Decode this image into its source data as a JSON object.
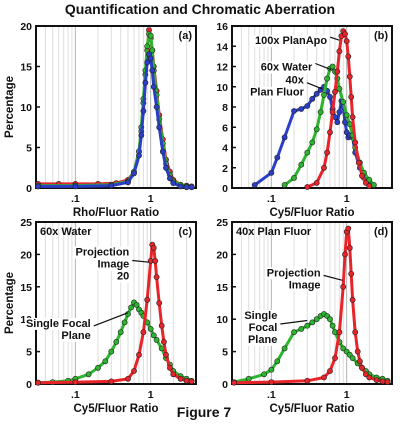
{
  "title": "Quantification and Chromatic Aberration",
  "caption": "Figure 7",
  "colors": {
    "red": "#e8242b",
    "green": "#2db52f",
    "blue": "#2b3ec8",
    "frame": "#111111"
  },
  "chart_data": [
    {
      "type": "line",
      "panel": "(a)",
      "xscale": "log",
      "xlim": [
        0.03,
        4
      ],
      "ylim": [
        0,
        20
      ],
      "xticks": [
        ".1",
        "1"
      ],
      "yticks": [
        "0",
        "5",
        "10",
        "15",
        "20"
      ],
      "xlabel": "Rho/Fluor Ratio",
      "ylabel": "Percentage",
      "annotations": [],
      "series": [
        {
          "color": "red",
          "x": [
            0.032,
            0.06,
            0.1,
            0.2,
            0.35,
            0.5,
            0.6,
            0.7,
            0.75,
            0.8,
            0.85,
            0.9,
            0.95,
            1.0,
            1.05,
            1.1,
            1.2,
            1.3,
            1.45,
            1.6,
            1.8,
            2.0,
            2.5,
            3.0,
            3.5
          ],
          "y": [
            0.5,
            0.5,
            0.5,
            0.5,
            0.6,
            1.0,
            2.0,
            4.5,
            7.0,
            10.5,
            14.0,
            17.0,
            19.5,
            18.5,
            17.0,
            15.0,
            12.0,
            9.0,
            6.0,
            3.5,
            2.0,
            1.0,
            0.4,
            0.3,
            0.2
          ]
        },
        {
          "color": "green",
          "x": [
            0.032,
            0.1,
            0.3,
            0.5,
            0.6,
            0.7,
            0.75,
            0.8,
            0.85,
            0.9,
            0.95,
            1.0,
            1.05,
            1.1,
            1.2,
            1.3,
            1.45,
            1.6,
            1.8,
            2.0,
            2.5,
            3.0,
            3.5
          ],
          "y": [
            0.3,
            0.3,
            0.4,
            0.8,
            2.0,
            4.5,
            7.5,
            11.0,
            14.5,
            17.5,
            19.0,
            18.8,
            17.0,
            14.5,
            11.5,
            8.5,
            5.5,
            3.0,
            1.6,
            0.8,
            0.4,
            0.2,
            0.1
          ]
        },
        {
          "color": "blue",
          "x": [
            0.032,
            0.1,
            0.3,
            0.5,
            0.6,
            0.7,
            0.75,
            0.8,
            0.85,
            0.9,
            0.95,
            1.0,
            1.05,
            1.1,
            1.2,
            1.3,
            1.45,
            1.6,
            1.8,
            2.0,
            2.5,
            3.0,
            3.5
          ],
          "y": [
            0.2,
            0.2,
            0.3,
            0.7,
            1.8,
            4.0,
            6.5,
            9.5,
            13.0,
            15.5,
            16.5,
            16.0,
            14.5,
            12.5,
            10.0,
            7.5,
            4.5,
            2.5,
            1.2,
            0.6,
            0.2,
            0.1,
            0.1
          ]
        }
      ]
    },
    {
      "type": "line",
      "panel": "(b)",
      "xscale": "log",
      "xlim": [
        0.03,
        4
      ],
      "ylim": [
        0,
        16
      ],
      "xticks": [
        ".1",
        "1"
      ],
      "yticks": [
        "0",
        "2",
        "4",
        "6",
        "8",
        "10",
        "12",
        "14",
        "16"
      ],
      "xlabel": "Cy5/Fluor Ratio",
      "ylabel": "",
      "annotations": [
        {
          "lines": [
            "100x PlanApo"
          ],
          "x": 0.55,
          "y": 14.6,
          "tx": 0.8,
          "ty": 14.6
        },
        {
          "lines": [
            "60x Water"
          ],
          "x": 0.35,
          "y": 12.0,
          "tx": 0.62,
          "ty": 11.7
        },
        {
          "lines": [
            "40x",
            "Plan Fluor"
          ],
          "x": 0.27,
          "y": 10.1,
          "tx": 0.47,
          "ty": 9.8
        }
      ],
      "series": [
        {
          "color": "blue",
          "x": [
            0.06,
            0.1,
            0.12,
            0.15,
            0.2,
            0.25,
            0.3,
            0.35,
            0.4,
            0.45,
            0.5,
            0.55,
            0.6,
            0.65,
            0.7,
            0.75,
            0.8,
            0.85,
            0.9,
            0.95,
            1.0,
            1.05,
            1.1,
            1.2,
            1.3,
            1.5,
            1.7,
            2.0
          ],
          "y": [
            0.3,
            1.5,
            3.0,
            5.0,
            7.6,
            7.8,
            8.1,
            8.8,
            9.3,
            9.7,
            10.0,
            9.6,
            9.0,
            7.8,
            7.0,
            6.5,
            7.5,
            8.6,
            8.0,
            6.5,
            5.5,
            5.0,
            5.2,
            5.0,
            3.5,
            2.0,
            1.0,
            0.3
          ]
        },
        {
          "color": "green",
          "x": [
            0.15,
            0.2,
            0.25,
            0.3,
            0.35,
            0.4,
            0.45,
            0.5,
            0.55,
            0.6,
            0.65,
            0.7,
            0.75,
            0.8,
            0.9,
            1.0,
            1.1,
            1.2,
            1.3,
            1.5,
            1.7,
            2.0,
            2.3
          ],
          "y": [
            0.3,
            1.0,
            2.3,
            3.5,
            4.5,
            5.8,
            7.5,
            9.2,
            10.8,
            11.8,
            12.0,
            11.5,
            10.8,
            9.8,
            8.5,
            7.2,
            6.3,
            5.2,
            4.0,
            2.5,
            1.5,
            0.8,
            0.3
          ]
        },
        {
          "color": "red",
          "x": [
            0.3,
            0.4,
            0.5,
            0.55,
            0.6,
            0.65,
            0.7,
            0.75,
            0.8,
            0.85,
            0.9,
            0.95,
            1.0,
            1.05,
            1.1,
            1.15,
            1.2,
            1.3,
            1.45,
            1.6,
            1.8,
            2.0
          ],
          "y": [
            0.1,
            0.5,
            2.0,
            3.5,
            5.5,
            7.5,
            9.5,
            11.5,
            13.5,
            15.0,
            15.5,
            15.2,
            14.5,
            13.0,
            11.0,
            9.0,
            7.0,
            4.5,
            2.5,
            1.2,
            0.5,
            0.2
          ]
        }
      ]
    },
    {
      "type": "line",
      "panel": "(c)",
      "tag": "60x Water",
      "xscale": "log",
      "xlim": [
        0.03,
        4
      ],
      "ylim": [
        0,
        25
      ],
      "xticks": [
        ".1",
        "1"
      ],
      "yticks": [
        "0",
        "5",
        "10",
        "15",
        "20",
        "25"
      ],
      "xlabel": "Cy5/Fluor Ratio",
      "ylabel": "Percentage",
      "annotations": [
        {
          "lines": [
            "Projection",
            "Image",
            "20"
          ],
          "x": 0.52,
          "y": 18.6,
          "tx": 0.95,
          "ty": 18.8
        },
        {
          "lines": [
            "Single Focal",
            "Plane"
          ],
          "x": 0.16,
          "y": 8.5,
          "tx": 0.5,
          "ty": 11.0
        }
      ],
      "series": [
        {
          "color": "green",
          "x": [
            0.032,
            0.05,
            0.08,
            0.1,
            0.15,
            0.2,
            0.25,
            0.3,
            0.35,
            0.4,
            0.45,
            0.5,
            0.55,
            0.6,
            0.65,
            0.7,
            0.75,
            0.8,
            0.9,
            1.0,
            1.1,
            1.2,
            1.4,
            1.6,
            1.8,
            2.0,
            2.5,
            3.0,
            3.5
          ],
          "y": [
            0.2,
            0.3,
            0.5,
            0.8,
            1.5,
            2.5,
            3.5,
            5.0,
            6.5,
            8.0,
            9.5,
            10.8,
            11.8,
            12.6,
            12.2,
            11.5,
            11.0,
            10.5,
            9.5,
            8.5,
            7.5,
            6.8,
            5.5,
            4.0,
            3.0,
            2.0,
            1.2,
            0.8,
            0.5
          ]
        },
        {
          "color": "red",
          "x": [
            0.032,
            0.1,
            0.3,
            0.5,
            0.6,
            0.7,
            0.8,
            0.9,
            1.0,
            1.05,
            1.1,
            1.15,
            1.2,
            1.3,
            1.4,
            1.5,
            1.6,
            1.8,
            2.0,
            2.5,
            3.0,
            3.5
          ],
          "y": [
            0.2,
            0.3,
            0.4,
            0.8,
            2.0,
            4.5,
            8.0,
            13.0,
            19.0,
            21.5,
            21.0,
            19.0,
            16.5,
            12.5,
            9.0,
            6.5,
            4.5,
            2.5,
            1.5,
            0.8,
            0.5,
            0.4
          ]
        }
      ]
    },
    {
      "type": "line",
      "panel": "(d)",
      "tag": "40x Plan Fluor",
      "xscale": "log",
      "xlim": [
        0.03,
        4
      ],
      "ylim": [
        0,
        25
      ],
      "xticks": [
        ".1",
        "1"
      ],
      "yticks": [
        "0",
        "5",
        "10",
        "15",
        "20",
        "25"
      ],
      "xlabel": "Cy5/Fluor Ratio",
      "ylabel": "",
      "annotations": [
        {
          "lines": [
            "Projection",
            "Image"
          ],
          "x": 0.45,
          "y": 16.3,
          "tx": 0.88,
          "ty": 16.0
        },
        {
          "lines": [
            "Single",
            "Focal",
            "Plane"
          ],
          "x": 0.12,
          "y": 8.8,
          "tx": 0.3,
          "ty": 9.8
        }
      ],
      "series": [
        {
          "color": "green",
          "x": [
            0.032,
            0.05,
            0.08,
            0.1,
            0.12,
            0.15,
            0.2,
            0.25,
            0.3,
            0.35,
            0.4,
            0.45,
            0.5,
            0.55,
            0.6,
            0.65,
            0.7,
            0.8,
            0.9,
            1.0,
            1.1,
            1.2,
            1.4,
            1.6,
            1.8,
            2.0,
            2.5,
            3.0,
            3.5
          ],
          "y": [
            0.3,
            0.8,
            1.5,
            2.2,
            3.5,
            5.5,
            8.0,
            8.5,
            9.0,
            9.5,
            10.0,
            10.5,
            10.8,
            10.5,
            10.0,
            9.0,
            8.0,
            6.5,
            5.5,
            5.0,
            4.5,
            4.0,
            3.2,
            2.5,
            2.0,
            1.5,
            1.0,
            0.8,
            0.5
          ]
        },
        {
          "color": "red",
          "x": [
            0.032,
            0.1,
            0.3,
            0.5,
            0.6,
            0.7,
            0.8,
            0.9,
            0.95,
            1.0,
            1.05,
            1.1,
            1.15,
            1.2,
            1.3,
            1.4,
            1.5,
            1.6,
            1.8,
            2.0,
            2.5,
            3.0,
            3.5
          ],
          "y": [
            0.2,
            0.3,
            0.5,
            1.0,
            2.0,
            4.0,
            8.0,
            15.0,
            20.0,
            23.5,
            24.0,
            21.0,
            17.0,
            13.0,
            8.0,
            5.0,
            3.5,
            2.5,
            1.5,
            1.0,
            0.6,
            0.4,
            0.3
          ]
        }
      ]
    }
  ]
}
